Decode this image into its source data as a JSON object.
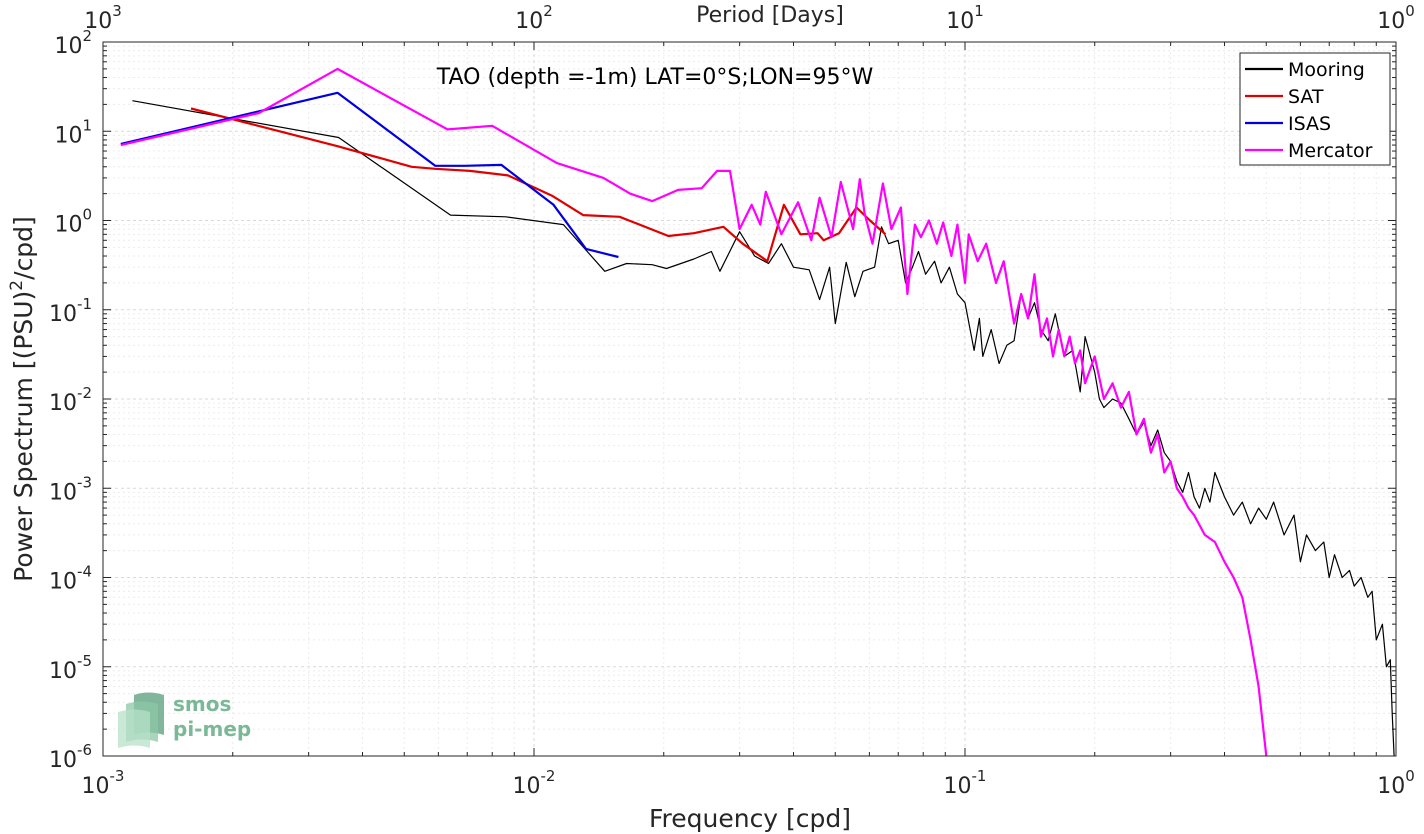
{
  "chart_data": {
    "type": "line",
    "title": "TAO (depth =-1m) LAT=0°S;LON=95°W",
    "xlabel": "Frequency [cpd]",
    "ylabel": "Power Spectrum [(PSU)²/cpd]",
    "ylabel_parts": {
      "pre": "Power Spectrum [(PSU)",
      "sup": "2",
      "post": "/cpd]"
    },
    "top_xlabel": "Period [Days]",
    "x_scale": "log",
    "y_scale": "log",
    "xlim": [
      0.001,
      1
    ],
    "ylim": [
      1e-06,
      100
    ],
    "grid": true,
    "legend_position": "top-right",
    "x_ticks": [
      {
        "value": 0.001,
        "base": "10",
        "exp": "-3"
      },
      {
        "value": 0.01,
        "base": "10",
        "exp": "-2"
      },
      {
        "value": 0.1,
        "base": "10",
        "exp": "-1"
      },
      {
        "value": 1,
        "base": "10",
        "exp": "0"
      }
    ],
    "top_ticks": [
      {
        "value": 0.001,
        "base": "10",
        "exp": "3"
      },
      {
        "value": 0.01,
        "base": "10",
        "exp": "2"
      },
      {
        "value": 0.1,
        "base": "10",
        "exp": "1"
      },
      {
        "value": 1,
        "base": "10",
        "exp": "0"
      }
    ],
    "y_ticks": [
      {
        "value": 100,
        "base": "10",
        "exp": "2"
      },
      {
        "value": 10,
        "base": "10",
        "exp": "1"
      },
      {
        "value": 1,
        "base": "10",
        "exp": "0"
      },
      {
        "value": 0.1,
        "base": "10",
        "exp": "-1"
      },
      {
        "value": 0.01,
        "base": "10",
        "exp": "-2"
      },
      {
        "value": 0.001,
        "base": "10",
        "exp": "-3"
      },
      {
        "value": 0.0001,
        "base": "10",
        "exp": "-4"
      },
      {
        "value": 1e-05,
        "base": "10",
        "exp": "-5"
      },
      {
        "value": 1e-06,
        "base": "10",
        "exp": "-6"
      }
    ],
    "series": [
      {
        "name": "Mooring",
        "color": "#000000",
        "points": [
          [
            0.00117,
            22
          ],
          [
            0.00352,
            8.5
          ],
          [
            0.0064,
            1.15
          ],
          [
            0.0086,
            1.1
          ],
          [
            0.0117,
            0.9
          ],
          [
            0.0146,
            0.27
          ],
          [
            0.0164,
            0.33
          ],
          [
            0.0188,
            0.32
          ],
          [
            0.0203,
            0.29
          ],
          [
            0.0235,
            0.37
          ],
          [
            0.0258,
            0.45
          ],
          [
            0.027,
            0.27
          ],
          [
            0.03,
            0.75
          ],
          [
            0.0325,
            0.4
          ],
          [
            0.035,
            0.33
          ],
          [
            0.0375,
            0.55
          ],
          [
            0.04,
            0.3
          ],
          [
            0.0435,
            0.28
          ],
          [
            0.046,
            0.13
          ],
          [
            0.0485,
            0.3
          ],
          [
            0.05,
            0.07
          ],
          [
            0.053,
            0.34
          ],
          [
            0.0555,
            0.14
          ],
          [
            0.058,
            0.27
          ],
          [
            0.0617,
            0.3
          ],
          [
            0.064,
            0.85
          ],
          [
            0.0665,
            0.55
          ],
          [
            0.07,
            0.6
          ],
          [
            0.0728,
            0.2
          ],
          [
            0.0755,
            0.3
          ],
          [
            0.078,
            0.45
          ],
          [
            0.081,
            0.25
          ],
          [
            0.085,
            0.35
          ],
          [
            0.088,
            0.2
          ],
          [
            0.092,
            0.3
          ],
          [
            0.096,
            0.15
          ],
          [
            0.1,
            0.12
          ],
          [
            0.105,
            0.035
          ],
          [
            0.108,
            0.08
          ],
          [
            0.11,
            0.03
          ],
          [
            0.115,
            0.06
          ],
          [
            0.12,
            0.025
          ],
          [
            0.125,
            0.04
          ],
          [
            0.13,
            0.045
          ],
          [
            0.135,
            0.15
          ],
          [
            0.14,
            0.08
          ],
          [
            0.145,
            0.12
          ],
          [
            0.15,
            0.06
          ],
          [
            0.156,
            0.045
          ],
          [
            0.162,
            0.09
          ],
          [
            0.17,
            0.03
          ],
          [
            0.178,
            0.035
          ],
          [
            0.185,
            0.012
          ],
          [
            0.19,
            0.05
          ],
          [
            0.2,
            0.02
          ],
          [
            0.205,
            0.01
          ],
          [
            0.21,
            0.008
          ],
          [
            0.22,
            0.01
          ],
          [
            0.23,
            0.009
          ],
          [
            0.24,
            0.006
          ],
          [
            0.25,
            0.004
          ],
          [
            0.26,
            0.0055
          ],
          [
            0.27,
            0.003
          ],
          [
            0.28,
            0.0045
          ],
          [
            0.29,
            0.0025
          ],
          [
            0.3,
            0.002
          ],
          [
            0.31,
            0.0012
          ],
          [
            0.32,
            0.0009
          ],
          [
            0.33,
            0.0015
          ],
          [
            0.34,
            0.0008
          ],
          [
            0.35,
            0.0006
          ],
          [
            0.36,
            0.001
          ],
          [
            0.37,
            0.0007
          ],
          [
            0.38,
            0.0015
          ],
          [
            0.4,
            0.0008
          ],
          [
            0.42,
            0.0005
          ],
          [
            0.44,
            0.0007
          ],
          [
            0.46,
            0.0004
          ],
          [
            0.48,
            0.0006
          ],
          [
            0.5,
            0.00045
          ],
          [
            0.52,
            0.0007
          ],
          [
            0.55,
            0.0003
          ],
          [
            0.58,
            0.0005
          ],
          [
            0.6,
            0.00015
          ],
          [
            0.62,
            0.0003
          ],
          [
            0.65,
            0.0002
          ],
          [
            0.68,
            0.00025
          ],
          [
            0.7,
            0.0001
          ],
          [
            0.72,
            0.00018
          ],
          [
            0.75,
            0.0001
          ],
          [
            0.78,
            0.00012
          ],
          [
            0.8,
            8e-05
          ],
          [
            0.83,
            0.0001
          ],
          [
            0.86,
            6e-05
          ],
          [
            0.88,
            7e-05
          ],
          [
            0.9,
            2e-05
          ],
          [
            0.93,
            3e-05
          ],
          [
            0.95,
            1e-05
          ],
          [
            0.97,
            1.2e-05
          ],
          [
            0.98,
            3e-06
          ],
          [
            0.99,
            1e-06
          ]
        ]
      },
      {
        "name": "SAT",
        "color": "#e00000",
        "points": [
          [
            0.0016,
            18
          ],
          [
            0.0035,
            6.8
          ],
          [
            0.0052,
            4.0
          ],
          [
            0.0059,
            3.8
          ],
          [
            0.0071,
            3.6
          ],
          [
            0.0087,
            3.2
          ],
          [
            0.011,
            1.9
          ],
          [
            0.013,
            1.15
          ],
          [
            0.0158,
            1.1
          ],
          [
            0.0205,
            0.67
          ],
          [
            0.0235,
            0.72
          ],
          [
            0.0275,
            0.85
          ],
          [
            0.0305,
            0.55
          ],
          [
            0.0348,
            0.35
          ],
          [
            0.038,
            1.5
          ],
          [
            0.0415,
            0.7
          ],
          [
            0.0455,
            0.72
          ],
          [
            0.047,
            0.6
          ],
          [
            0.051,
            0.72
          ],
          [
            0.056,
            1.4
          ],
          [
            0.0602,
            1.0
          ],
          [
            0.0654,
            0.7
          ]
        ]
      },
      {
        "name": "ISAS",
        "color": "#0000e0",
        "points": [
          [
            0.0011,
            7.2
          ],
          [
            0.0035,
            27
          ],
          [
            0.0059,
            4.1
          ],
          [
            0.0069,
            4.1
          ],
          [
            0.0084,
            4.2
          ],
          [
            0.0111,
            1.5
          ],
          [
            0.0132,
            0.48
          ],
          [
            0.0157,
            0.39
          ]
        ]
      },
      {
        "name": "Mercator",
        "color": "#ff00ff",
        "points": [
          [
            0.0011,
            7.0
          ],
          [
            0.0023,
            16
          ],
          [
            0.0035,
            50
          ],
          [
            0.0063,
            10.5
          ],
          [
            0.008,
            11.5
          ],
          [
            0.0113,
            4.4
          ],
          [
            0.0145,
            3.0
          ],
          [
            0.0167,
            2.0
          ],
          [
            0.0188,
            1.65
          ],
          [
            0.0216,
            2.2
          ],
          [
            0.0245,
            2.3
          ],
          [
            0.0266,
            3.6
          ],
          [
            0.0285,
            3.6
          ],
          [
            0.03,
            0.8
          ],
          [
            0.032,
            1.5
          ],
          [
            0.0335,
            0.9
          ],
          [
            0.0345,
            2.1
          ],
          [
            0.0375,
            0.7
          ],
          [
            0.041,
            1.6
          ],
          [
            0.044,
            0.6
          ],
          [
            0.046,
            1.8
          ],
          [
            0.049,
            0.65
          ],
          [
            0.0515,
            2.7
          ],
          [
            0.055,
            0.8
          ],
          [
            0.057,
            2.9
          ],
          [
            0.0585,
            1.2
          ],
          [
            0.061,
            0.55
          ],
          [
            0.0645,
            2.6
          ],
          [
            0.0675,
            0.8
          ],
          [
            0.071,
            1.4
          ],
          [
            0.0735,
            0.15
          ],
          [
            0.0765,
            0.9
          ],
          [
            0.079,
            0.65
          ],
          [
            0.0825,
            1.0
          ],
          [
            0.086,
            0.55
          ],
          [
            0.089,
            0.95
          ],
          [
            0.093,
            0.4
          ],
          [
            0.096,
            0.9
          ],
          [
            0.1,
            0.2
          ],
          [
            0.102,
            0.7
          ],
          [
            0.107,
            0.35
          ],
          [
            0.112,
            0.55
          ],
          [
            0.118,
            0.2
          ],
          [
            0.123,
            0.35
          ],
          [
            0.13,
            0.07
          ],
          [
            0.135,
            0.15
          ],
          [
            0.14,
            0.08
          ],
          [
            0.145,
            0.25
          ],
          [
            0.15,
            0.05
          ],
          [
            0.155,
            0.08
          ],
          [
            0.16,
            0.03
          ],
          [
            0.165,
            0.06
          ],
          [
            0.17,
            0.03
          ],
          [
            0.175,
            0.05
          ],
          [
            0.18,
            0.025
          ],
          [
            0.185,
            0.035
          ],
          [
            0.19,
            0.015
          ],
          [
            0.2,
            0.03
          ],
          [
            0.21,
            0.01
          ],
          [
            0.22,
            0.015
          ],
          [
            0.23,
            0.008
          ],
          [
            0.24,
            0.012
          ],
          [
            0.25,
            0.004
          ],
          [
            0.26,
            0.006
          ],
          [
            0.27,
            0.0025
          ],
          [
            0.28,
            0.004
          ],
          [
            0.29,
            0.0015
          ],
          [
            0.3,
            0.002
          ],
          [
            0.31,
            0.001
          ],
          [
            0.32,
            0.0008
          ],
          [
            0.33,
            0.0006
          ],
          [
            0.34,
            0.0005
          ],
          [
            0.36,
            0.0003
          ],
          [
            0.38,
            0.00025
          ],
          [
            0.4,
            0.00015
          ],
          [
            0.42,
            0.0001
          ],
          [
            0.44,
            6e-05
          ],
          [
            0.46,
            2e-05
          ],
          [
            0.48,
            6e-06
          ],
          [
            0.5,
            1e-06
          ]
        ]
      }
    ]
  },
  "logo": {
    "line1": "smos",
    "line2": "pi-mep",
    "color": "#5fae8a"
  }
}
